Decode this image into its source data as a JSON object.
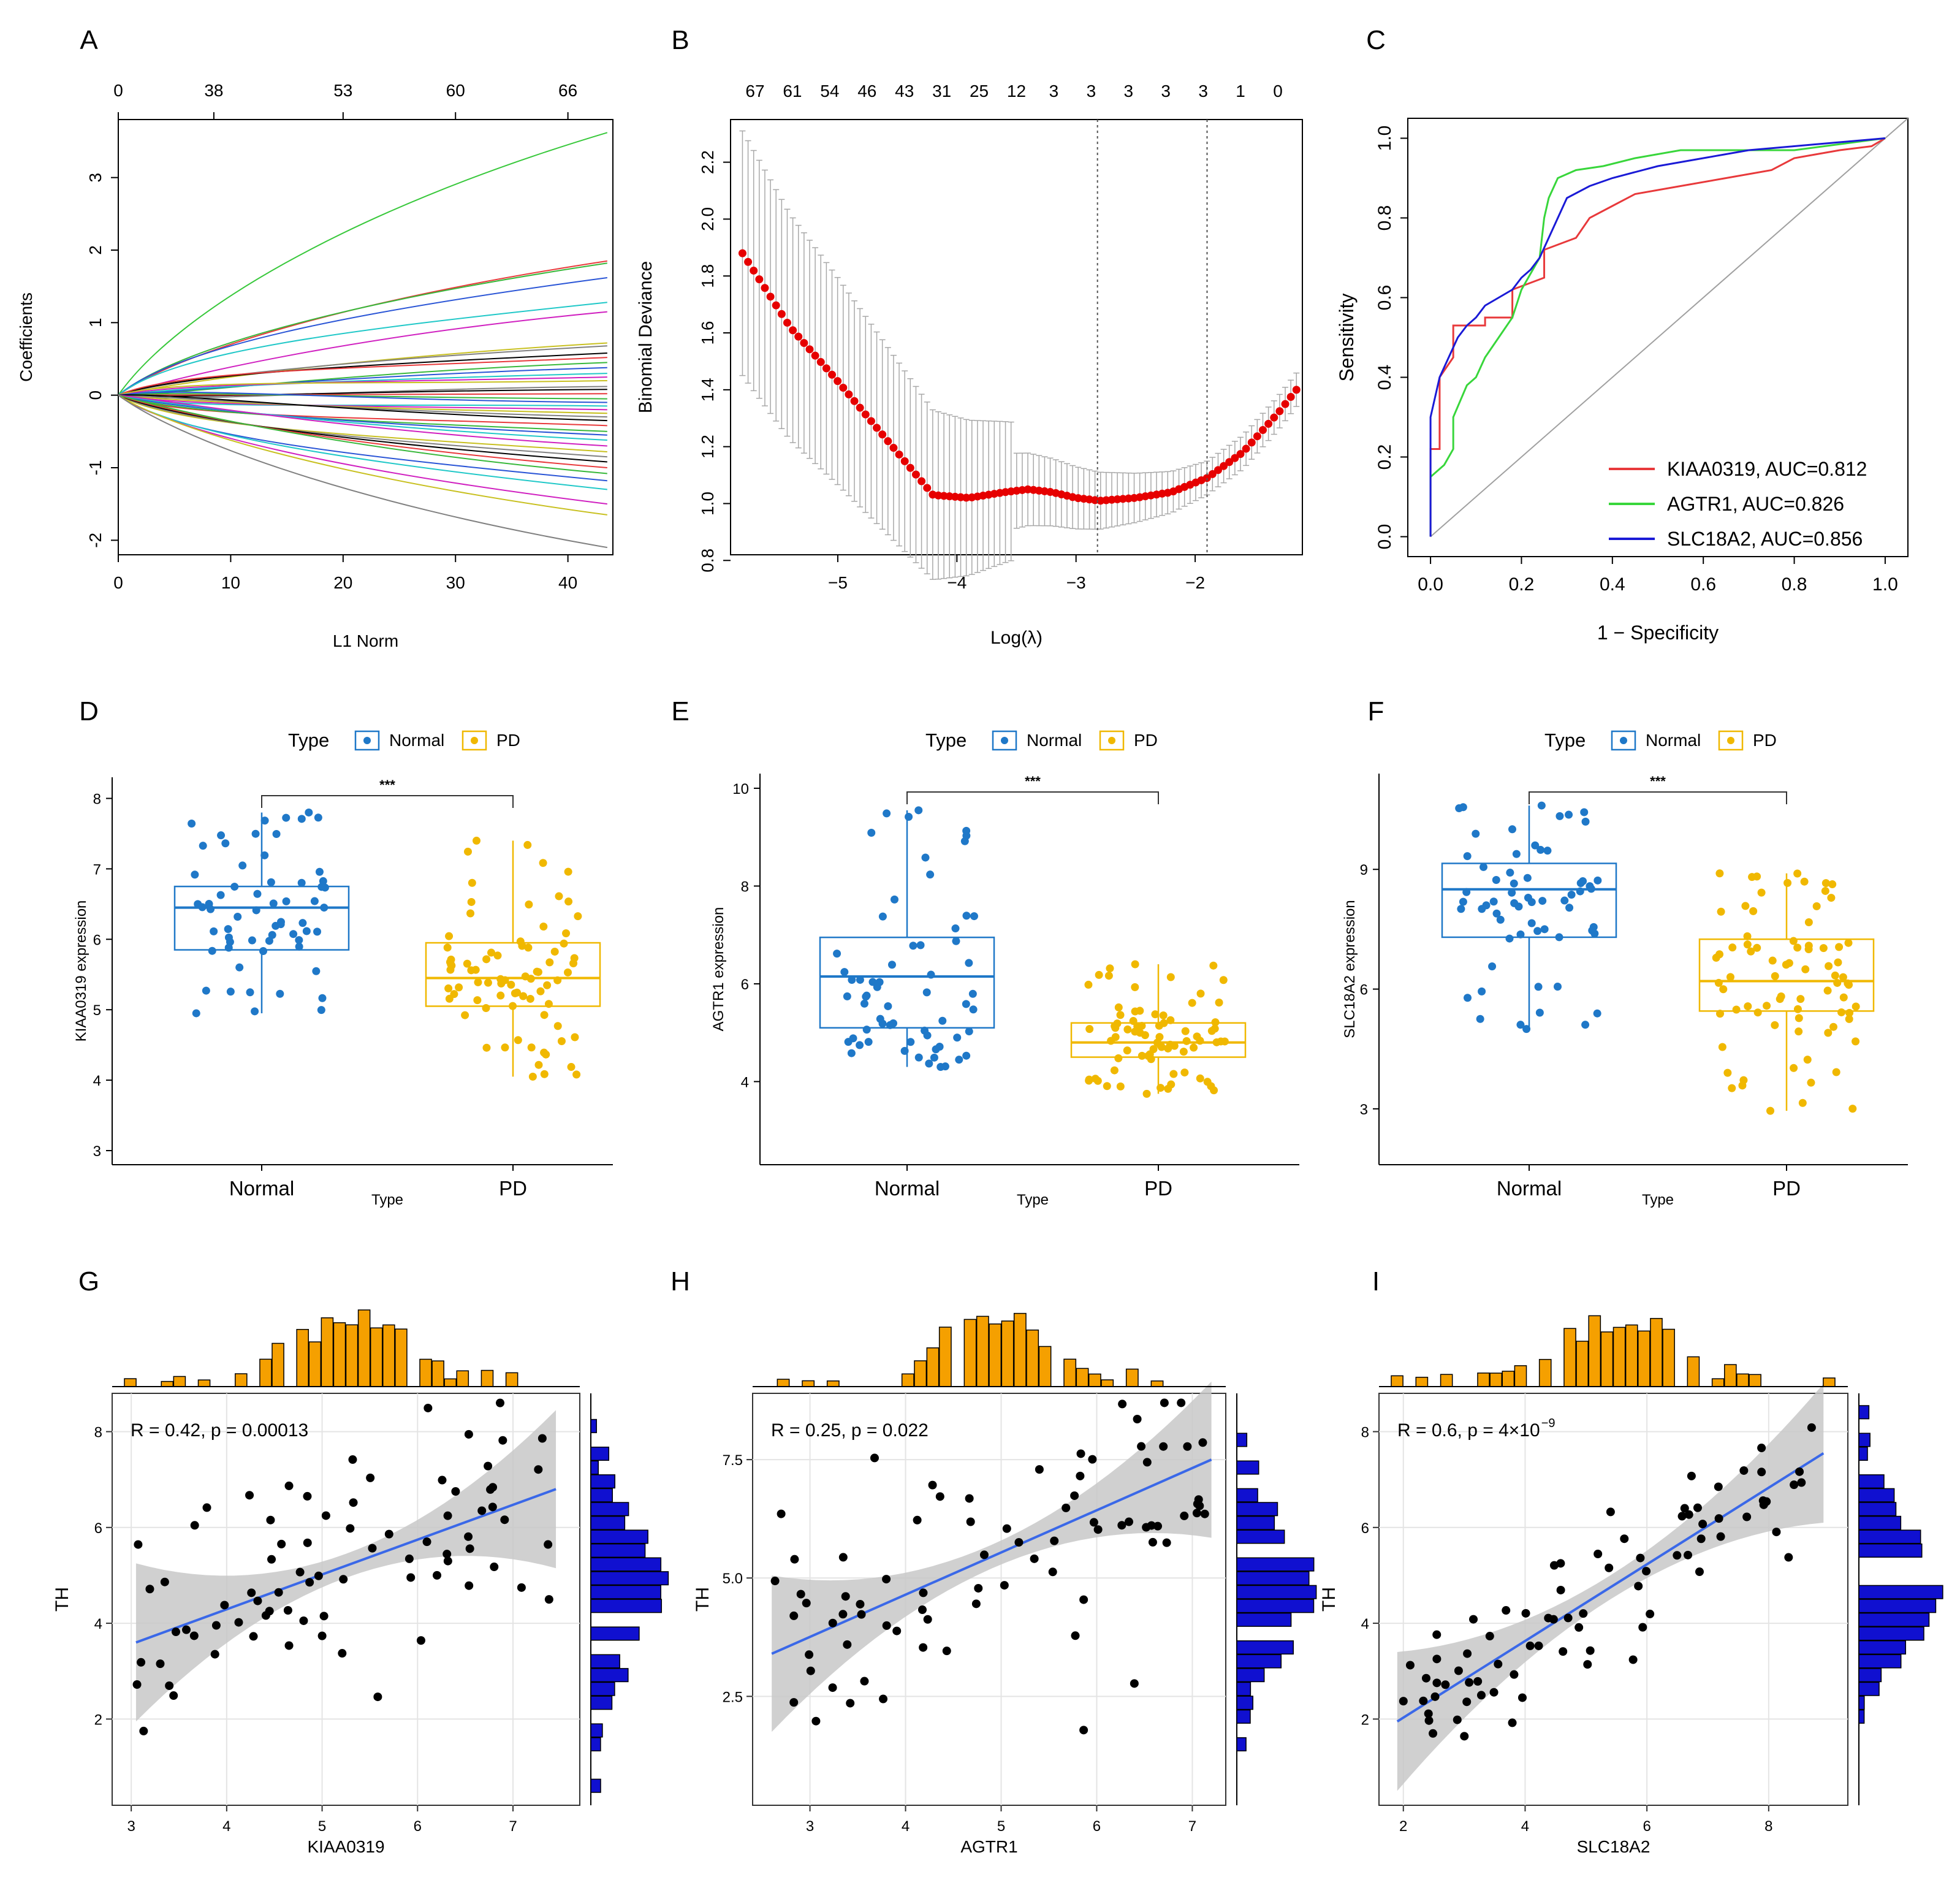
{
  "figure": {
    "colors": {
      "red": "#e8393b",
      "green": "#38d63b",
      "blue": "#1a1ad6",
      "normal": "#1f78c8",
      "pd": "#f0b800",
      "hist_orange": "#f5a000",
      "hist_blue": "#1010d0",
      "loess_blue": "#3a68e8",
      "band": "#c8c8c8",
      "dots_red": "#e60000"
    }
  },
  "chart_data": [
    {
      "id": "A",
      "type": "line",
      "panel_label": "A",
      "xlabel": "L1 Norm",
      "ylabel": "Coefficients",
      "xlim": [
        0,
        44
      ],
      "ylim": [
        -2.2,
        3.8
      ],
      "xticks": [
        "0",
        "10",
        "20",
        "30",
        "40"
      ],
      "yticks": [
        "-2",
        "-1",
        "0",
        "1",
        "2",
        "3"
      ],
      "top_ticks": [
        "0",
        "38",
        "53",
        "60",
        "66"
      ],
      "series_endpoints": [
        3.62,
        1.85,
        1.82,
        1.62,
        1.28,
        1.15,
        0.72,
        0.68,
        0.58,
        0.52,
        0.45,
        0.38,
        0.3,
        0.25,
        0.2,
        0.12,
        0.08,
        0.02,
        -0.05,
        -0.1,
        -0.15,
        -0.2,
        -0.25,
        -0.3,
        -0.35,
        -0.42,
        -0.5,
        -0.55,
        -0.62,
        -0.7,
        -0.78,
        -0.85,
        -0.92,
        -1.0,
        -1.08,
        -1.18,
        -1.3,
        -1.5,
        -1.65,
        -2.1
      ]
    },
    {
      "id": "B",
      "type": "scatter",
      "panel_label": "B",
      "xlabel": "Log(λ)",
      "ylabel": "Binomial Deviance",
      "xlim": [
        -5.9,
        -1.1
      ],
      "ylim": [
        0.82,
        2.35
      ],
      "xticks": [
        "−5",
        "−4",
        "−3",
        "−2"
      ],
      "yticks": [
        "0.8",
        "1.0",
        "1.2",
        "1.4",
        "1.6",
        "1.8",
        "2.0",
        "2.2"
      ],
      "top_ticks": [
        "67",
        "61",
        "54",
        "46",
        "43",
        "31",
        "25",
        "12",
        "3",
        "3",
        "3",
        "3",
        "3",
        "1",
        "0"
      ],
      "vlines": [
        -2.82,
        -1.9
      ],
      "curve_x": [
        -5.8,
        -5.4,
        -5.0,
        -4.6,
        -4.2,
        -3.9,
        -3.6,
        -3.4,
        -3.2,
        -3.0,
        -2.8,
        -2.5,
        -2.2,
        -1.9,
        -1.6,
        -1.3,
        -1.15
      ],
      "curve_y": [
        1.88,
        1.62,
        1.43,
        1.23,
        1.03,
        1.02,
        1.04,
        1.05,
        1.04,
        1.02,
        1.01,
        1.02,
        1.04,
        1.09,
        1.18,
        1.32,
        1.4
      ]
    },
    {
      "id": "C",
      "type": "line",
      "panel_label": "C",
      "xlabel": "1 − Specificity",
      "ylabel": "Sensitivity",
      "xlim": [
        -0.05,
        1.05
      ],
      "ylim": [
        -0.05,
        1.05
      ],
      "xticks": [
        "0.0",
        "0.2",
        "0.4",
        "0.6",
        "0.8",
        "1.0"
      ],
      "yticks": [
        "0.0",
        "0.2",
        "0.4",
        "0.6",
        "0.8",
        "1.0"
      ],
      "series": [
        {
          "name": "KIAA0319, AUC=0.812",
          "color": "red",
          "x": [
            0,
            0,
            0.02,
            0.02,
            0.05,
            0.05,
            0.12,
            0.12,
            0.18,
            0.18,
            0.25,
            0.25,
            0.32,
            0.35,
            0.4,
            0.45,
            0.55,
            0.65,
            0.75,
            0.8,
            0.9,
            0.97,
            1.0
          ],
          "y": [
            0,
            0.22,
            0.22,
            0.4,
            0.45,
            0.53,
            0.53,
            0.55,
            0.55,
            0.62,
            0.65,
            0.72,
            0.75,
            0.8,
            0.83,
            0.86,
            0.88,
            0.9,
            0.92,
            0.95,
            0.97,
            0.98,
            1.0
          ]
        },
        {
          "name": "AGTR1, AUC=0.826",
          "color": "green",
          "x": [
            0,
            0,
            0.03,
            0.05,
            0.05,
            0.08,
            0.1,
            0.12,
            0.15,
            0.18,
            0.2,
            0.24,
            0.25,
            0.26,
            0.28,
            0.32,
            0.38,
            0.45,
            0.55,
            0.7,
            0.8,
            1.0
          ],
          "y": [
            0,
            0.15,
            0.18,
            0.22,
            0.3,
            0.38,
            0.4,
            0.45,
            0.5,
            0.55,
            0.62,
            0.7,
            0.8,
            0.85,
            0.9,
            0.92,
            0.93,
            0.95,
            0.97,
            0.97,
            0.97,
            1.0
          ]
        },
        {
          "name": "SLC18A2, AUC=0.856",
          "color": "blue",
          "x": [
            0,
            0,
            0.02,
            0.04,
            0.06,
            0.08,
            0.1,
            0.12,
            0.15,
            0.18,
            0.2,
            0.22,
            0.24,
            0.26,
            0.28,
            0.3,
            0.35,
            0.4,
            0.5,
            0.6,
            0.7,
            0.8,
            0.9,
            1.0
          ],
          "y": [
            0,
            0.3,
            0.4,
            0.45,
            0.5,
            0.53,
            0.55,
            0.58,
            0.6,
            0.62,
            0.65,
            0.67,
            0.7,
            0.75,
            0.8,
            0.85,
            0.88,
            0.9,
            0.93,
            0.95,
            0.97,
            0.98,
            0.99,
            1.0
          ]
        }
      ]
    },
    {
      "id": "D",
      "type": "box",
      "panel_label": "D",
      "legend_title": "Type",
      "legend_items": [
        "Normal",
        "PD"
      ],
      "categories": [
        "Normal",
        "PD"
      ],
      "xlabel": "Type",
      "ylabel": "KIAA0319 expression",
      "ylim": [
        2.8,
        8.3
      ],
      "yticks": [
        "3",
        "4",
        "5",
        "6",
        "7",
        "8"
      ],
      "signif": "***",
      "boxes": [
        {
          "min": 4.95,
          "q1": 5.85,
          "median": 6.45,
          "q3": 6.75,
          "max": 7.8
        },
        {
          "min": 4.05,
          "q1": 5.05,
          "median": 5.45,
          "q3": 5.95,
          "max": 7.4
        }
      ]
    },
    {
      "id": "E",
      "type": "box",
      "panel_label": "E",
      "legend_title": "Type",
      "legend_items": [
        "Normal",
        "PD"
      ],
      "categories": [
        "Normal",
        "PD"
      ],
      "xlabel": "Type",
      "ylabel": "AGTR1 expression",
      "ylim": [
        2.3,
        10.3
      ],
      "yticks": [
        "4",
        "6",
        "8",
        "10"
      ],
      "signif": "***",
      "boxes": [
        {
          "min": 4.3,
          "q1": 5.1,
          "median": 6.15,
          "q3": 6.95,
          "max": 9.55
        },
        {
          "min": 3.75,
          "q1": 4.5,
          "median": 4.8,
          "q3": 5.2,
          "max": 6.4
        }
      ]
    },
    {
      "id": "F",
      "type": "box",
      "panel_label": "F",
      "legend_title": "Type",
      "legend_items": [
        "Normal",
        "PD"
      ],
      "categories": [
        "Normal",
        "PD"
      ],
      "xlabel": "Type",
      "ylabel": "SLC18A2 expression",
      "ylim": [
        1.6,
        11.4
      ],
      "yticks": [
        "3",
        "6",
        "9"
      ],
      "signif": "***",
      "boxes": [
        {
          "min": 5.0,
          "q1": 7.3,
          "median": 8.5,
          "q3": 9.15,
          "max": 10.6
        },
        {
          "min": 2.95,
          "q1": 5.45,
          "median": 6.2,
          "q3": 7.25,
          "max": 8.9
        }
      ]
    },
    {
      "id": "G",
      "type": "scatter",
      "panel_label": "G",
      "xlabel": "KIAA0319",
      "ylabel": "TH",
      "annotation": "R = 0.42, p = 0.00013",
      "xlim": [
        2.8,
        7.7
      ],
      "ylim": [
        0.2,
        8.8
      ],
      "xticks": [
        "3",
        "4",
        "5",
        "6",
        "7"
      ],
      "yticks": [
        "2",
        "4",
        "6",
        "8"
      ],
      "fit": {
        "x": [
          3.05,
          7.45
        ],
        "y": [
          3.6,
          6.8
        ]
      }
    },
    {
      "id": "H",
      "type": "scatter",
      "panel_label": "H",
      "xlabel": "AGTR1",
      "ylabel": "TH",
      "annotation": "R = 0.25, p = 0.022",
      "xlim": [
        2.4,
        7.35
      ],
      "ylim": [
        0.2,
        8.9
      ],
      "xticks": [
        "3",
        "4",
        "5",
        "6",
        "7"
      ],
      "yticks": [
        "2.5",
        "5.0",
        "7.5"
      ],
      "fit": {
        "x": [
          2.6,
          7.2
        ],
        "y": [
          3.4,
          7.5
        ]
      }
    },
    {
      "id": "I",
      "type": "scatter",
      "panel_label": "I",
      "xlabel": "SLC18A2",
      "ylabel": "TH",
      "annotation": "R = 0.6, p = 4×10",
      "annotation_exp": "−9",
      "xlim": [
        1.6,
        9.3
      ],
      "ylim": [
        0.2,
        8.8
      ],
      "xticks": [
        "2",
        "4",
        "6",
        "8"
      ],
      "yticks": [
        "2",
        "4",
        "6",
        "8"
      ],
      "fit": {
        "x": [
          1.9,
          8.9
        ],
        "y": [
          1.95,
          7.55
        ]
      }
    }
  ]
}
